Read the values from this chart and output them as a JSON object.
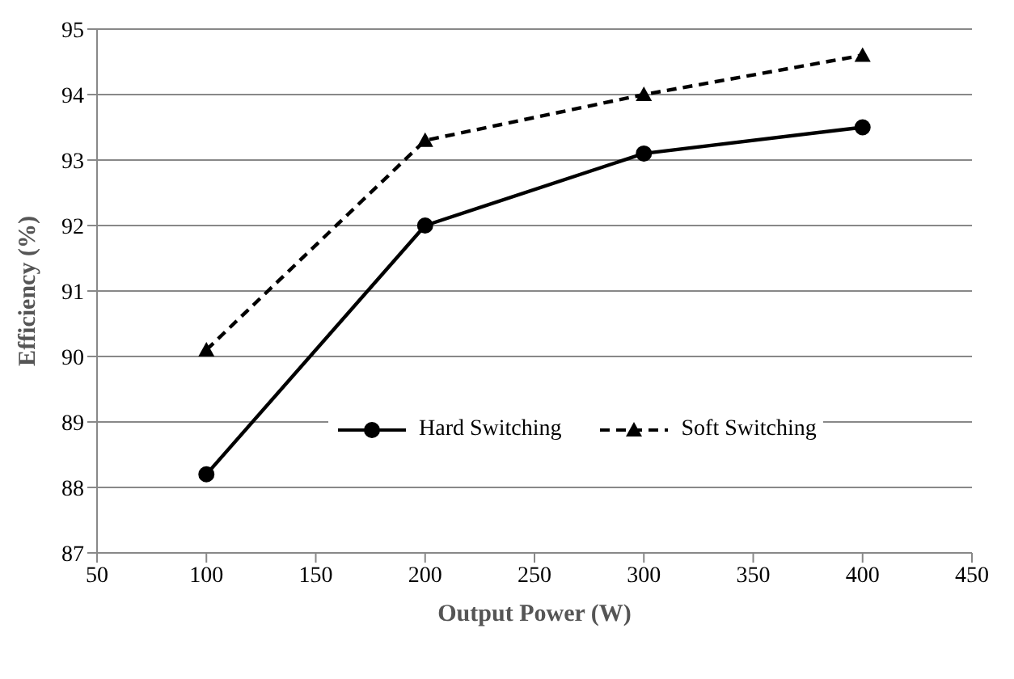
{
  "chart_data": {
    "type": "line",
    "xlabel": "Output Power (W)",
    "ylabel": "Efficiency (%)",
    "x": [
      100,
      200,
      300,
      400
    ],
    "series": [
      {
        "name": "Hard Switching",
        "color": "#000000",
        "marker": "circle",
        "line_style": "solid",
        "values": [
          88.2,
          92.0,
          93.1,
          93.5
        ]
      },
      {
        "name": "Soft Switching",
        "color": "#000000",
        "marker": "triangle",
        "line_style": "dashed",
        "values": [
          90.1,
          93.3,
          94.0,
          94.6
        ]
      }
    ],
    "xlim": [
      50,
      450
    ],
    "xticks": [
      50,
      100,
      150,
      200,
      250,
      300,
      350,
      400,
      450
    ],
    "ylim": [
      87,
      95
    ],
    "yticks": [
      87,
      88,
      89,
      90,
      91,
      92,
      93,
      94,
      95
    ],
    "grid": "y",
    "legend": "center right"
  }
}
